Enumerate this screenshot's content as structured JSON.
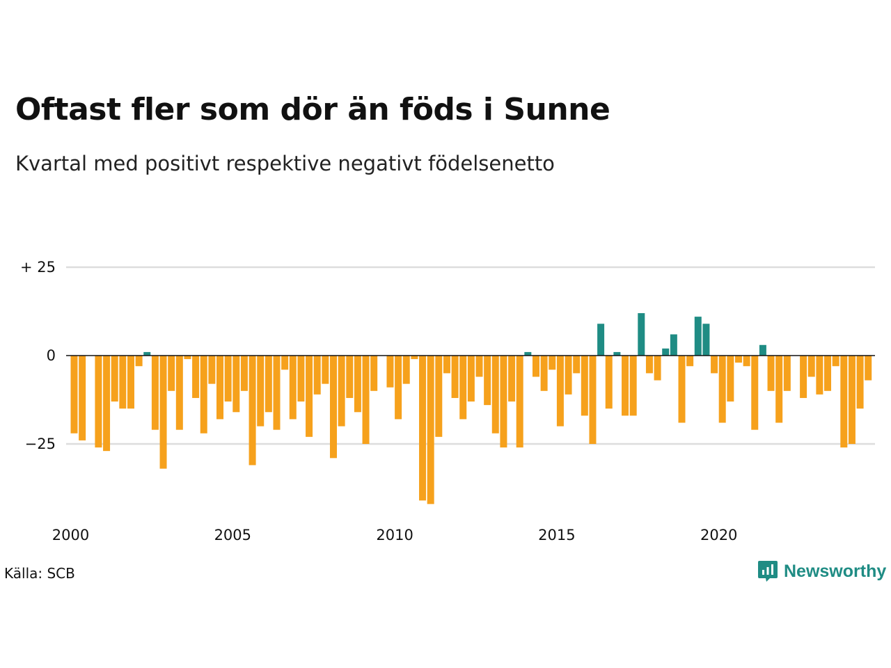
{
  "title": "Oftast fler som dör än föds i Sunne",
  "subtitle": "Kvartal med positivt respektive negativt födelsenetto",
  "source": "Källa: SCB",
  "brand": {
    "name": "Newsworthy",
    "icon": "newsworthy-logo-icon"
  },
  "colors": {
    "positive": "#1f8c84",
    "negative": "#f6a11c",
    "grid": "#dddddd",
    "zero_line": "#111111"
  },
  "chart_data": {
    "type": "bar",
    "title": "Oftast fler som dör än föds i Sunne",
    "subtitle": "Kvartal med positivt respektive negativt födelsenetto",
    "xlabel": "",
    "ylabel": "",
    "x_ticks": [
      2000,
      2005,
      2010,
      2015,
      2020
    ],
    "x_tick_labels": [
      "2000",
      "2005",
      "2010",
      "2015",
      "2020"
    ],
    "y_ticks": [
      25,
      0,
      -25
    ],
    "y_tick_labels": [
      "+ 25",
      "0",
      "−25"
    ],
    "ylim": [
      -42,
      33
    ],
    "grid": true,
    "start_year": 2000,
    "values": [
      -22,
      -24,
      0,
      -26,
      -27,
      -13,
      -15,
      -15,
      -3,
      1,
      -21,
      -32,
      -10,
      -21,
      -1,
      -12,
      -22,
      -8,
      -18,
      -13,
      -16,
      -10,
      -31,
      -20,
      -16,
      -21,
      -4,
      -18,
      -13,
      -23,
      -11,
      -8,
      -29,
      -20,
      -12,
      -16,
      -25,
      -10,
      0,
      -9,
      -18,
      -8,
      -1,
      -41,
      -42,
      -23,
      -5,
      -12,
      -18,
      -13,
      -6,
      -14,
      -22,
      -26,
      -13,
      -26,
      1,
      -6,
      -10,
      -4,
      -20,
      -11,
      -5,
      -17,
      -25,
      9,
      -15,
      1,
      -17,
      -17,
      12,
      -5,
      -7,
      2,
      6,
      -19,
      -3,
      11,
      9,
      -5,
      -19,
      -13,
      -2,
      -3,
      -21,
      3,
      -10,
      -19,
      -10,
      0,
      -12,
      -6,
      -11,
      -10,
      -3,
      -26,
      -25,
      -15,
      -7
    ]
  }
}
